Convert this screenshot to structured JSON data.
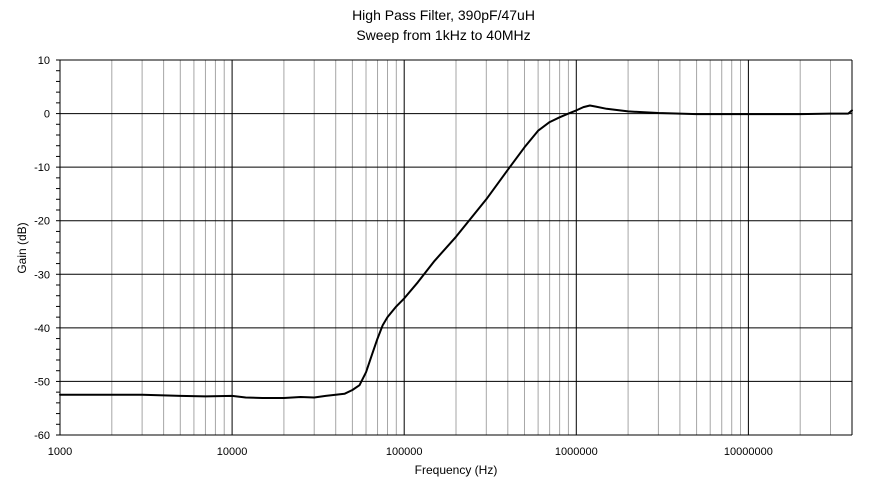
{
  "chart_data": {
    "type": "line",
    "title": "High Pass Filter, 390pF/47uH",
    "subtitle": "Sweep from  1kHz to 40MHz",
    "xlabel": "Frequency (Hz)",
    "ylabel": "Gain (dB)",
    "xscale": "log",
    "xlim": [
      1000,
      40000000
    ],
    "ylim": [
      -60,
      10
    ],
    "xticks": [
      "1000",
      "10000",
      "100000",
      "1000000",
      "10000000"
    ],
    "yticks": [
      "10",
      "0",
      "-10",
      "-20",
      "-30",
      "-40",
      "-50",
      "-60"
    ],
    "grid": true,
    "legend": "none",
    "line_color": "#000000",
    "series": [
      {
        "x": [
          1000,
          1500,
          2000,
          3000,
          4000,
          5000,
          7000,
          10000,
          12000,
          15000,
          20000,
          25000,
          30000,
          35000,
          40000,
          45000,
          50000,
          55000,
          60000,
          65000,
          70000,
          75000,
          80000,
          90000,
          100000,
          120000,
          150000,
          200000,
          300000,
          400000,
          500000,
          600000,
          700000,
          800000,
          900000,
          1000000,
          1100000,
          1200000,
          1300000,
          1500000,
          2000000,
          3000000,
          5000000,
          10000000,
          20000000,
          30000000,
          38000000,
          40000000
        ],
        "y": [
          -52.5,
          -52.5,
          -52.5,
          -52.5,
          -52.6,
          -52.7,
          -52.8,
          -52.7,
          -53.0,
          -53.1,
          -53.1,
          -52.9,
          -53.0,
          -52.7,
          -52.5,
          -52.3,
          -51.6,
          -50.7,
          -48.3,
          -45.0,
          -42.0,
          -39.5,
          -38.0,
          -36.0,
          -34.5,
          -31.5,
          -27.5,
          -23.0,
          -16.0,
          -10.5,
          -6.3,
          -3.2,
          -1.6,
          -0.7,
          0.0,
          0.6,
          1.2,
          1.5,
          1.3,
          0.9,
          0.4,
          0.1,
          -0.1,
          -0.1,
          -0.1,
          0.0,
          0.0,
          0.6
        ]
      }
    ]
  }
}
